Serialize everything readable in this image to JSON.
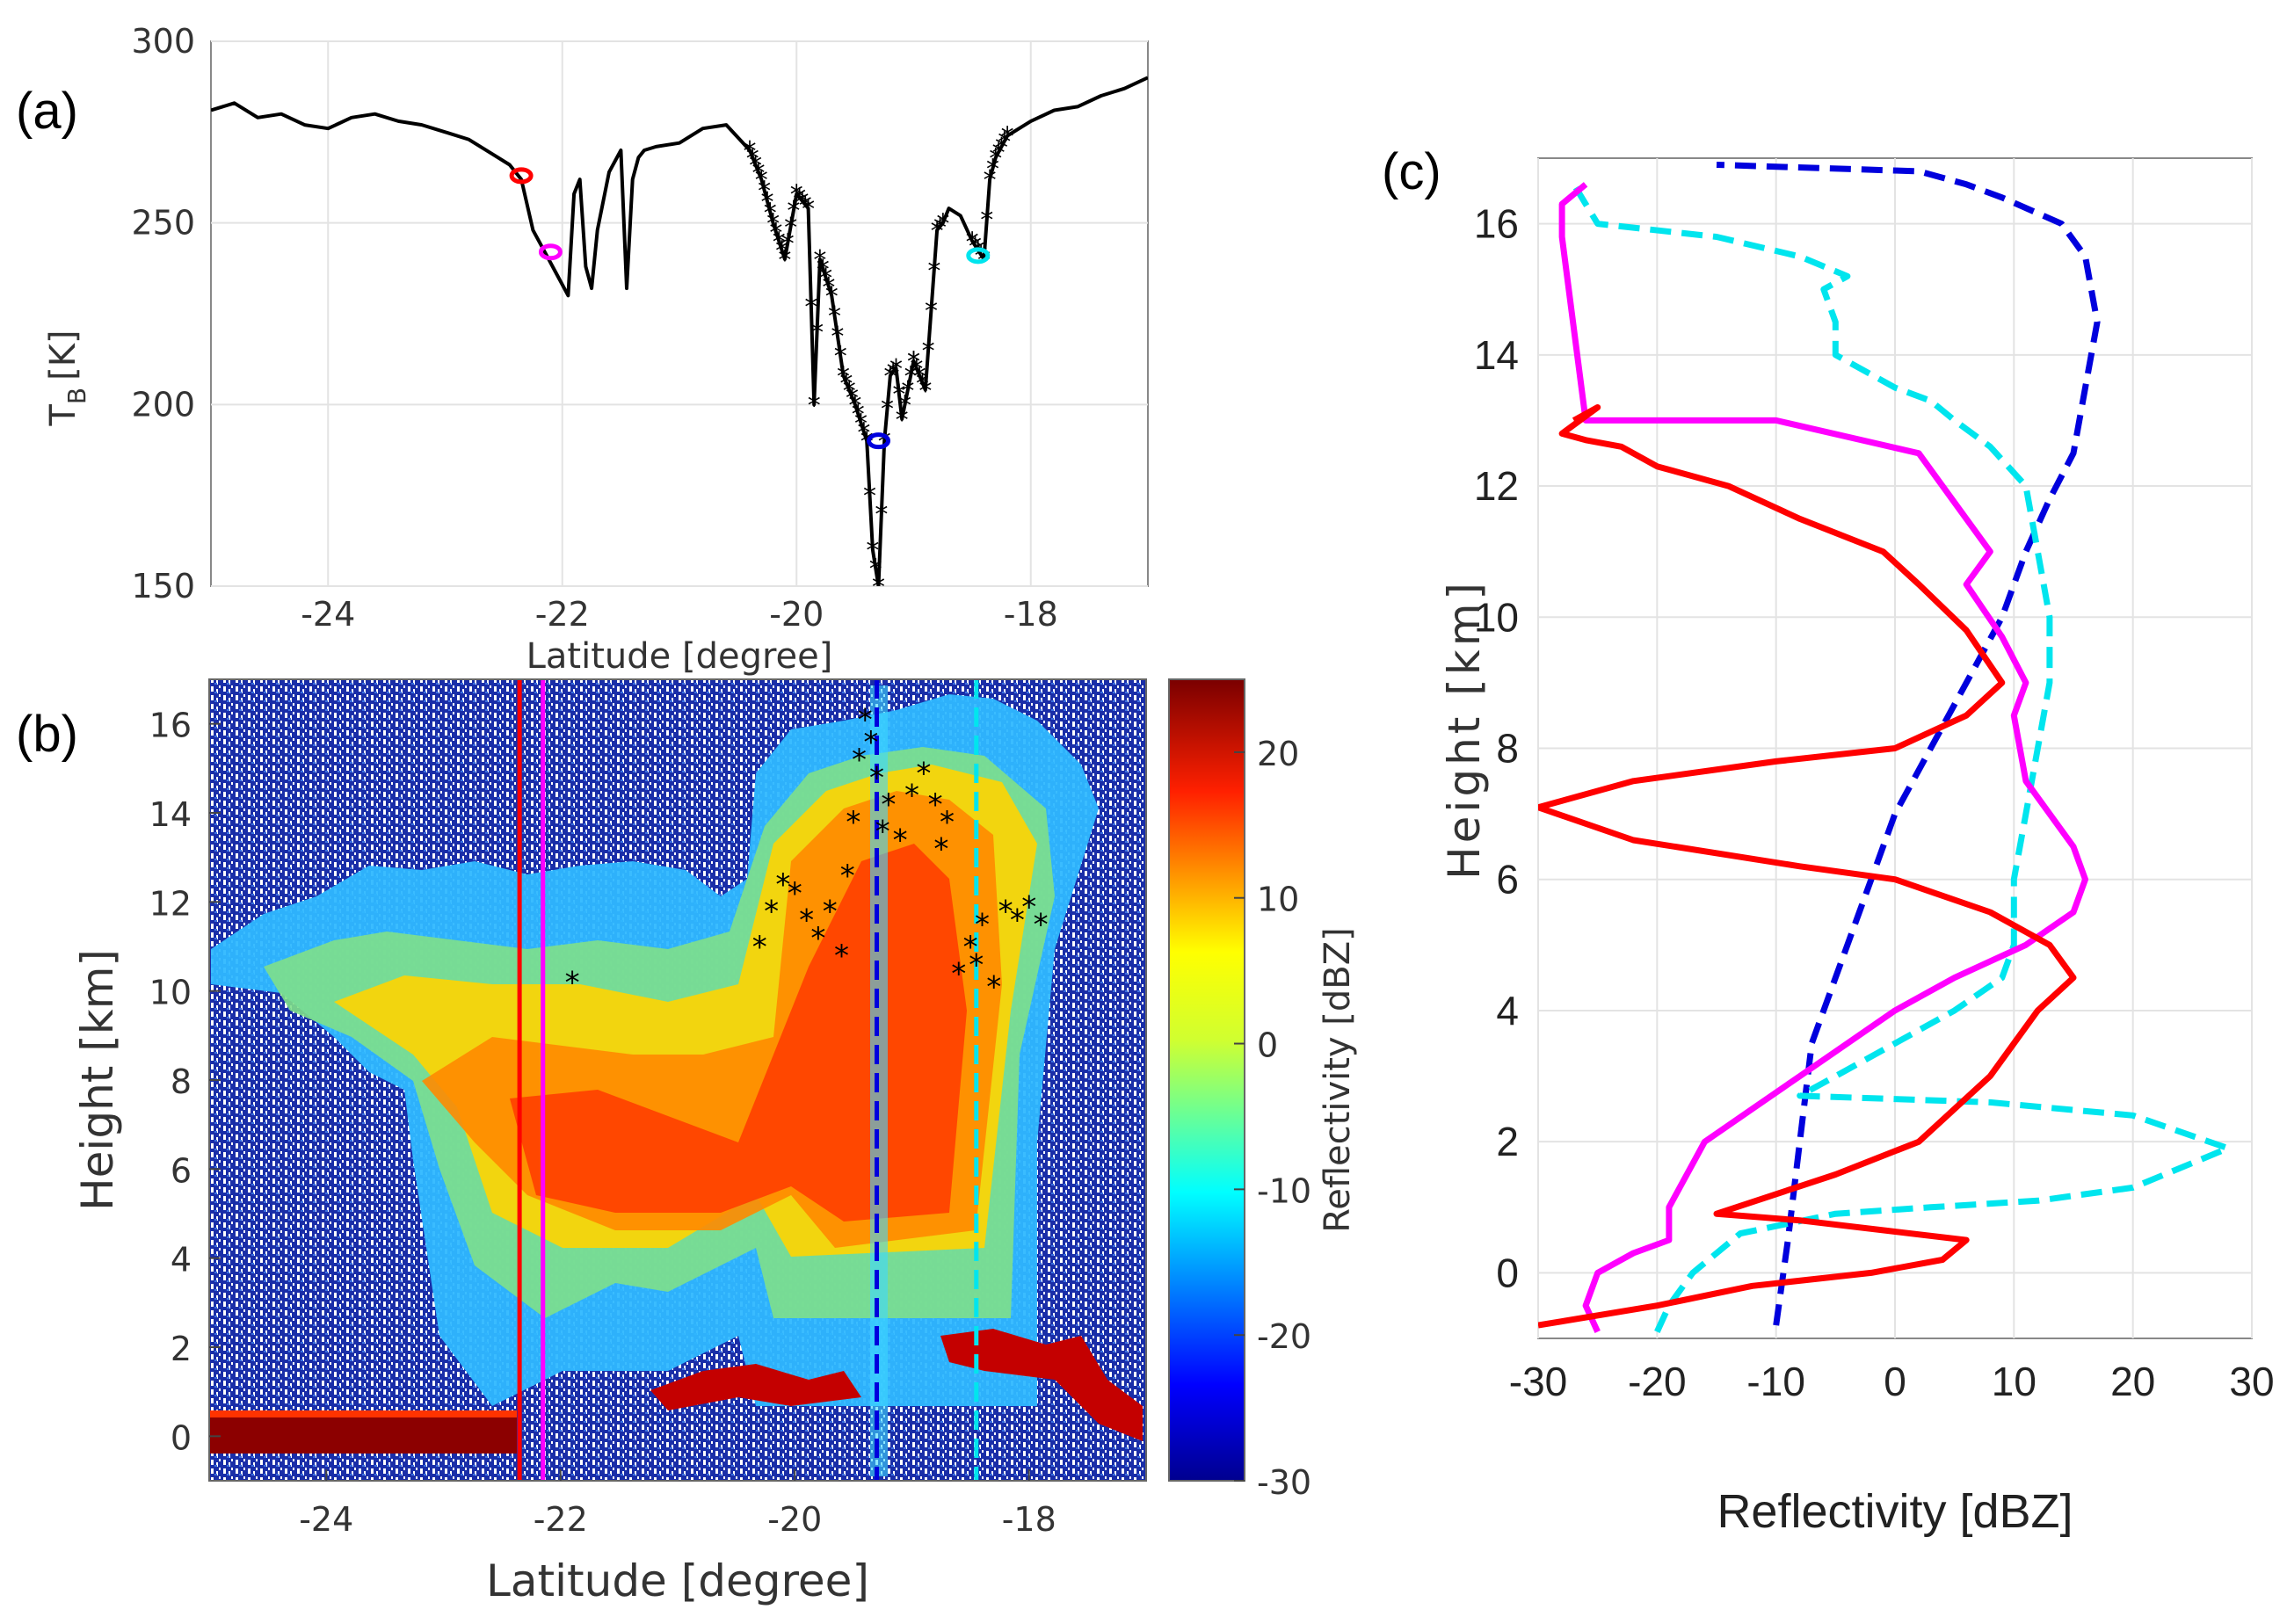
{
  "panel_labels": {
    "a": "(a)",
    "b": "(b)",
    "c": "(c)"
  },
  "colors": {
    "red": "#ff0000",
    "magenta": "#ff00ff",
    "cyan": "#00e5ee",
    "blue": "#0000dd",
    "black": "#000000"
  },
  "chart_data": [
    {
      "id": "a",
      "type": "line",
      "xlabel": "Latitude [degree]",
      "ylabel": "T",
      "ylabel_sub": "B",
      "ylabel_unit": "[K]",
      "xlim": [
        -25,
        -17
      ],
      "ylim": [
        150,
        300
      ],
      "xticks": [
        -24,
        -22,
        -20,
        -18
      ],
      "yticks": [
        150,
        200,
        250,
        300
      ],
      "series": [
        {
          "name": "TB",
          "color": "#000000",
          "x": [
            -25.0,
            -24.8,
            -24.6,
            -24.4,
            -24.2,
            -24.0,
            -23.8,
            -23.6,
            -23.4,
            -23.2,
            -23.0,
            -22.8,
            -22.6,
            -22.45,
            -22.35,
            -22.25,
            -22.15,
            -22.05,
            -21.95,
            -21.9,
            -21.85,
            -21.8,
            -21.75,
            -21.7,
            -21.6,
            -21.5,
            -21.45,
            -21.4,
            -21.35,
            -21.3,
            -21.2,
            -21.0,
            -20.8,
            -20.6,
            -20.4,
            -20.3,
            -20.2,
            -20.1,
            -20.0,
            -19.9,
            -19.85,
            -19.8,
            -19.7,
            -19.6,
            -19.5,
            -19.45,
            -19.4,
            -19.35,
            -19.3,
            -19.25,
            -19.2,
            -19.15,
            -19.1,
            -19.0,
            -18.9,
            -18.8,
            -18.75,
            -18.7,
            -18.6,
            -18.5,
            -18.4,
            -18.35,
            -18.3,
            -18.2,
            -18.0,
            -17.8,
            -17.6,
            -17.4,
            -17.2,
            -17.0
          ],
          "y": [
            281,
            283,
            279,
            280,
            277,
            276,
            279,
            280,
            278,
            277,
            275,
            273,
            269,
            266,
            262,
            248,
            242,
            236,
            230,
            258,
            262,
            238,
            232,
            248,
            264,
            270,
            232,
            262,
            268,
            270,
            271,
            272,
            276,
            277,
            270,
            262,
            250,
            240,
            258,
            254,
            200,
            240,
            230,
            208,
            200,
            195,
            190,
            160,
            150,
            190,
            208,
            210,
            196,
            212,
            204,
            248,
            250,
            254,
            252,
            245,
            240,
            262,
            268,
            274,
            278,
            281,
            282,
            285,
            287,
            290
          ]
        }
      ],
      "markers": [
        {
          "x": -22.35,
          "y": 263,
          "color": "#ff0000"
        },
        {
          "x": -22.1,
          "y": 242,
          "color": "#ff00ff"
        },
        {
          "x": -19.3,
          "y": 190,
          "color": "#0000dd"
        },
        {
          "x": -18.45,
          "y": 241,
          "color": "#00e5ee"
        }
      ],
      "star_segments": [
        {
          "x_from": -20.4,
          "x_to": -19.0
        },
        {
          "x_from": -19.0,
          "x_to": -18.75
        },
        {
          "x_from": -18.5,
          "x_to": -18.2
        }
      ]
    },
    {
      "id": "b",
      "type": "heatmap",
      "xlabel": "Latitude [degree]",
      "ylabel": "Height [km]",
      "colorbar_label": "Reflectivity [dBZ]",
      "xlim": [
        -25,
        -17
      ],
      "ylim": [
        -1,
        17
      ],
      "xticks": [
        -24,
        -22,
        -20,
        -18
      ],
      "yticks": [
        0,
        2,
        4,
        6,
        8,
        10,
        12,
        14,
        16
      ],
      "colorbar_ticks": [
        -30,
        -20,
        -10,
        0,
        10,
        20
      ],
      "colorbar_range": [
        -30,
        25
      ],
      "vertical_lines": [
        {
          "x": -22.35,
          "color": "#ff0000",
          "style": "solid"
        },
        {
          "x": -22.15,
          "color": "#ff00ff",
          "style": "solid"
        },
        {
          "x": -19.3,
          "color": "#0000dd",
          "style": "dashed"
        },
        {
          "x": -18.45,
          "color": "#00e5ee",
          "style": "dashed"
        }
      ],
      "star_points": [
        {
          "x": -21.9,
          "y": 10.2
        },
        {
          "x": -20.3,
          "y": 11.0
        },
        {
          "x": -20.2,
          "y": 11.8
        },
        {
          "x": -20.1,
          "y": 12.4
        },
        {
          "x": -20.0,
          "y": 12.2
        },
        {
          "x": -19.9,
          "y": 11.6
        },
        {
          "x": -19.8,
          "y": 11.2
        },
        {
          "x": -19.7,
          "y": 11.8
        },
        {
          "x": -19.6,
          "y": 10.8
        },
        {
          "x": -19.55,
          "y": 12.6
        },
        {
          "x": -19.5,
          "y": 13.8
        },
        {
          "x": -19.45,
          "y": 15.2
        },
        {
          "x": -19.4,
          "y": 16.1
        },
        {
          "x": -19.35,
          "y": 15.6
        },
        {
          "x": -19.3,
          "y": 14.8
        },
        {
          "x": -19.25,
          "y": 13.6
        },
        {
          "x": -19.2,
          "y": 14.2
        },
        {
          "x": -19.1,
          "y": 13.4
        },
        {
          "x": -19.0,
          "y": 14.4
        },
        {
          "x": -18.9,
          "y": 14.9
        },
        {
          "x": -18.8,
          "y": 14.2
        },
        {
          "x": -18.75,
          "y": 13.2
        },
        {
          "x": -18.7,
          "y": 13.8
        },
        {
          "x": -18.6,
          "y": 10.4
        },
        {
          "x": -18.5,
          "y": 11.0
        },
        {
          "x": -18.45,
          "y": 10.6
        },
        {
          "x": -18.4,
          "y": 11.5
        },
        {
          "x": -18.3,
          "y": 10.1
        },
        {
          "x": -18.2,
          "y": 11.8
        },
        {
          "x": -18.1,
          "y": 11.6
        },
        {
          "x": -18.0,
          "y": 11.9
        },
        {
          "x": -17.9,
          "y": 11.5
        }
      ]
    },
    {
      "id": "c",
      "type": "line",
      "xlabel": "Reflectivity [dBZ]",
      "ylabel": "Height [km]",
      "xlim": [
        -30,
        30
      ],
      "ylim": [
        -1,
        17
      ],
      "xticks": [
        -30,
        -20,
        -10,
        0,
        10,
        20,
        30
      ],
      "yticks": [
        0,
        2,
        4,
        6,
        8,
        10,
        12,
        14,
        16
      ],
      "series": [
        {
          "name": "blue",
          "color": "#0000dd",
          "style": "dashed",
          "x": [
            -10,
            -9,
            -8,
            -7,
            -5,
            -3,
            0,
            3,
            6,
            9,
            11,
            13,
            15,
            16,
            17,
            16,
            14,
            9,
            6,
            2,
            -15
          ],
          "y": [
            -0.8,
            0.5,
            2,
            3.5,
            4.5,
            5.5,
            7,
            8,
            9,
            10,
            11,
            11.8,
            12.5,
            13.5,
            14.5,
            15.5,
            16,
            16.4,
            16.6,
            16.8,
            16.9
          ]
        },
        {
          "name": "cyan",
          "color": "#00e5ee",
          "style": "dashed",
          "x": [
            -20,
            -19,
            -17,
            -13,
            -5,
            3,
            12,
            20,
            28,
            20,
            8,
            -8,
            -5,
            0,
            5,
            9,
            10,
            10,
            11,
            12,
            13,
            13,
            12,
            11,
            8,
            5,
            3,
            0,
            -5,
            -5,
            -6,
            -4,
            -8,
            -15,
            -25,
            -26,
            -27
          ],
          "y": [
            -0.9,
            -0.5,
            0,
            0.6,
            0.9,
            1,
            1.1,
            1.3,
            1.9,
            2.4,
            2.6,
            2.7,
            3,
            3.5,
            4,
            4.5,
            5,
            6,
            7,
            8,
            9,
            10,
            11,
            12,
            12.6,
            13,
            13.3,
            13.5,
            14,
            14.5,
            15,
            15.2,
            15.5,
            15.8,
            16,
            16.3,
            16.6
          ]
        },
        {
          "name": "magenta",
          "color": "#ff00ff",
          "style": "solid",
          "x": [
            -25,
            -26,
            -25,
            -22,
            -19,
            -19,
            -16,
            -12,
            -8,
            -4,
            0,
            5,
            11,
            15,
            16,
            15,
            13,
            11,
            10,
            11,
            9,
            6,
            8,
            6,
            4,
            2,
            -10,
            -26,
            -28,
            -28,
            -26
          ],
          "y": [
            -0.9,
            -0.5,
            0,
            0.3,
            0.5,
            1,
            2,
            2.5,
            3,
            3.5,
            4,
            4.5,
            5,
            5.5,
            6,
            6.5,
            7,
            7.5,
            8.5,
            9,
            9.7,
            10.5,
            11,
            11.5,
            12,
            12.5,
            13,
            13,
            15.8,
            16.3,
            16.6
          ]
        },
        {
          "name": "red",
          "color": "#ff0000",
          "style": "solid",
          "x": [
            -30,
            -20,
            -12,
            -2,
            4,
            6,
            -8,
            -15,
            -5,
            2,
            8,
            12,
            15,
            13,
            8,
            0,
            -8,
            -22,
            -30,
            -22,
            -10,
            0,
            6,
            9,
            6,
            2,
            -1,
            -8,
            -14,
            -20,
            -23,
            -26,
            -28,
            -25,
            -27
          ],
          "y": [
            -0.8,
            -0.5,
            -0.2,
            0,
            0.2,
            0.5,
            0.8,
            0.9,
            1.5,
            2,
            3,
            4,
            4.5,
            5,
            5.5,
            6,
            6.2,
            6.6,
            7.1,
            7.5,
            7.8,
            8,
            8.5,
            9,
            9.8,
            10.5,
            11,
            11.5,
            12,
            12.3,
            12.6,
            12.7,
            12.8,
            13.2,
            13
          ]
        }
      ]
    }
  ]
}
